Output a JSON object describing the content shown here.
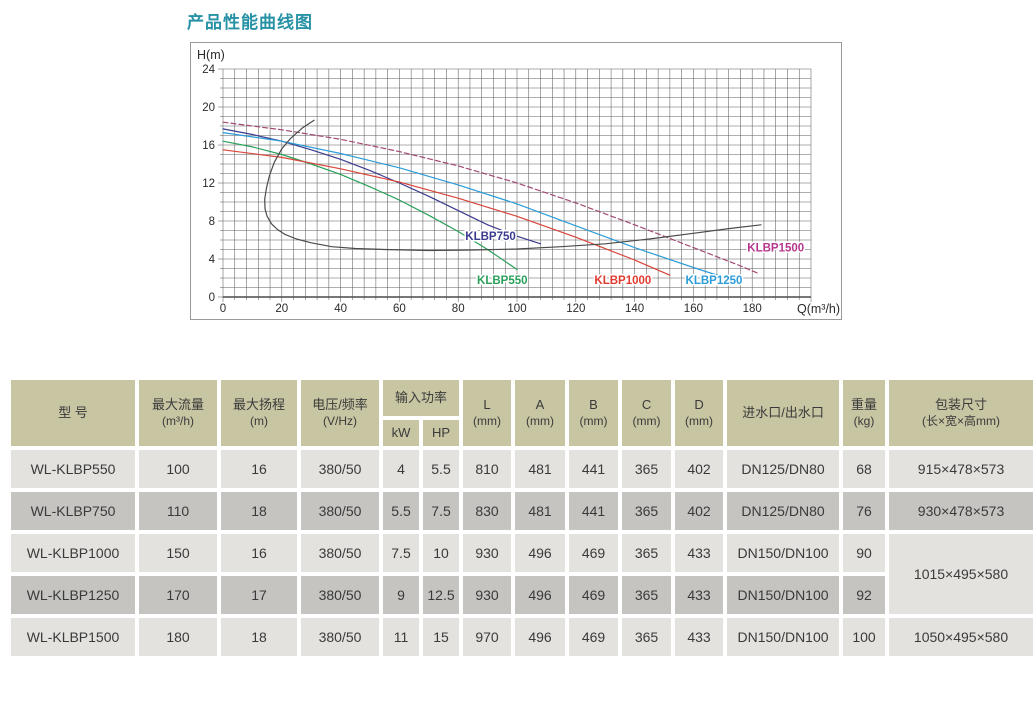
{
  "page": {
    "title": "产品性能曲线图",
    "title_color": "#2791a5"
  },
  "chart_data": {
    "type": "line",
    "title": "产品性能曲线图",
    "xlabel": "Q(m³/h)",
    "ylabel": "H(m)",
    "xlim": [
      0,
      200
    ],
    "ylim": [
      0,
      24
    ],
    "x_ticks": [
      0,
      20,
      40,
      60,
      80,
      100,
      120,
      140,
      160,
      180
    ],
    "y_ticks": [
      0,
      4,
      8,
      12,
      16,
      20,
      24
    ],
    "minor_x_step": 4,
    "minor_y_step": 1,
    "grid": true,
    "grid_color": "#5f5f5f",
    "legend_position": "inline-labels",
    "series": [
      {
        "name": "KLBP550",
        "color": "#2aa05a",
        "label_color": "#2aa05a",
        "label_at": [
          95,
          1.8
        ],
        "points": [
          [
            0,
            16.4
          ],
          [
            10,
            15.8
          ],
          [
            20,
            15.0
          ],
          [
            30,
            14.0
          ],
          [
            40,
            12.9
          ],
          [
            50,
            11.6
          ],
          [
            60,
            10.2
          ],
          [
            70,
            8.6
          ],
          [
            80,
            6.9
          ],
          [
            90,
            5.0
          ],
          [
            100,
            2.9
          ]
        ]
      },
      {
        "name": "KLBP750",
        "color": "#3b3b8e",
        "label_color": "#3b3b8e",
        "label_at": [
          91,
          6.4
        ],
        "points": [
          [
            0,
            17.7
          ],
          [
            10,
            17.1
          ],
          [
            20,
            16.4
          ],
          [
            30,
            15.5
          ],
          [
            40,
            14.5
          ],
          [
            50,
            13.3
          ],
          [
            60,
            12.0
          ],
          [
            70,
            10.6
          ],
          [
            80,
            9.1
          ],
          [
            90,
            7.6
          ],
          [
            100,
            6.4
          ],
          [
            108,
            5.6
          ]
        ]
      },
      {
        "name": "KLBP1000",
        "color": "#d9453a",
        "label_color": "#e03b30",
        "label_at": [
          136,
          1.8
        ],
        "points": [
          [
            0,
            15.5
          ],
          [
            20,
            14.7
          ],
          [
            40,
            13.5
          ],
          [
            60,
            12.1
          ],
          [
            80,
            10.4
          ],
          [
            100,
            8.5
          ],
          [
            120,
            6.3
          ],
          [
            140,
            3.9
          ],
          [
            152,
            2.3
          ]
        ]
      },
      {
        "name": "KLBP1250",
        "color": "#2b9cd8",
        "label_color": "#2b9cd8",
        "label_at": [
          167,
          1.8
        ],
        "points": [
          [
            0,
            17.3
          ],
          [
            20,
            16.4
          ],
          [
            40,
            15.1
          ],
          [
            60,
            13.6
          ],
          [
            80,
            11.8
          ],
          [
            100,
            9.8
          ],
          [
            120,
            7.5
          ],
          [
            140,
            5.2
          ],
          [
            160,
            3.1
          ],
          [
            170,
            2.1
          ]
        ]
      },
      {
        "name": "KLBP1500",
        "color": "#a34a74",
        "label_color": "#b5368d",
        "label_at": [
          188,
          5.2
        ],
        "dash": "5,3",
        "points": [
          [
            0,
            18.4
          ],
          [
            20,
            17.6
          ],
          [
            40,
            16.6
          ],
          [
            60,
            15.3
          ],
          [
            80,
            13.8
          ],
          [
            100,
            12.0
          ],
          [
            120,
            9.9
          ],
          [
            140,
            7.6
          ],
          [
            160,
            5.2
          ],
          [
            175,
            3.4
          ],
          [
            182,
            2.5
          ]
        ]
      },
      {
        "name": "",
        "color": "#4b4b4b",
        "label_at": null,
        "points": [
          [
            31,
            18.6
          ],
          [
            27,
            17.8
          ],
          [
            23,
            16.7
          ],
          [
            20,
            15.6
          ],
          [
            17.5,
            14.2
          ],
          [
            15.8,
            12.8
          ],
          [
            14.8,
            11.5
          ],
          [
            14.2,
            10.3
          ],
          [
            14.3,
            9.3
          ],
          [
            15,
            8.5
          ],
          [
            16.5,
            7.7
          ],
          [
            18.5,
            7.1
          ],
          [
            21,
            6.6
          ],
          [
            25,
            6.1
          ],
          [
            30,
            5.7
          ],
          [
            37,
            5.3
          ],
          [
            45,
            5.1
          ],
          [
            55,
            5.0
          ],
          [
            70,
            4.9
          ],
          [
            85,
            4.95
          ],
          [
            100,
            5.05
          ],
          [
            115,
            5.3
          ],
          [
            130,
            5.6
          ],
          [
            145,
            6.1
          ],
          [
            160,
            6.7
          ],
          [
            172,
            7.2
          ],
          [
            183,
            7.6
          ]
        ]
      }
    ]
  },
  "table": {
    "columns": [
      {
        "id": "model",
        "label": "型 号",
        "sub": ""
      },
      {
        "id": "flow",
        "label": "最大流量",
        "sub": "(m³/h)"
      },
      {
        "id": "head",
        "label": "最大扬程",
        "sub": "(m)"
      },
      {
        "id": "volt",
        "label": "电压/频率",
        "sub": "(V/Hz)"
      },
      {
        "id": "power",
        "label": "输入功率",
        "children": [
          "kW",
          "HP"
        ]
      },
      {
        "id": "L",
        "label": "L",
        "sub": "(mm)"
      },
      {
        "id": "A",
        "label": "A",
        "sub": "(mm)"
      },
      {
        "id": "B",
        "label": "B",
        "sub": "(mm)"
      },
      {
        "id": "C",
        "label": "C",
        "sub": "(mm)"
      },
      {
        "id": "D",
        "label": "D",
        "sub": "(mm)"
      },
      {
        "id": "port",
        "label": "进水口/出水口",
        "sub": ""
      },
      {
        "id": "weight",
        "label": "重量",
        "sub": "(kg)"
      },
      {
        "id": "pack",
        "label": "包装尺寸",
        "sub": "(长×宽×高mm)"
      }
    ],
    "rows": [
      [
        "WL-KLBP550",
        "100",
        "16",
        "380/50",
        "4",
        "5.5",
        "810",
        "481",
        "441",
        "365",
        "402",
        "DN125/DN80",
        "68",
        "915×478×573"
      ],
      [
        "WL-KLBP750",
        "110",
        "18",
        "380/50",
        "5.5",
        "7.5",
        "830",
        "481",
        "441",
        "365",
        "402",
        "DN125/DN80",
        "76",
        "930×478×573"
      ],
      [
        "WL-KLBP1000",
        "150",
        "16",
        "380/50",
        "7.5",
        "10",
        "930",
        "496",
        "469",
        "365",
        "433",
        "DN150/DN100",
        "90",
        "1015×495×580"
      ],
      [
        "WL-KLBP1250",
        "170",
        "17",
        "380/50",
        "9",
        "12.5",
        "930",
        "496",
        "469",
        "365",
        "433",
        "DN150/DN100",
        "92",
        null
      ],
      [
        "WL-KLBP1500",
        "180",
        "18",
        "380/50",
        "11",
        "15",
        "970",
        "496",
        "469",
        "365",
        "433",
        "DN150/DN100",
        "100",
        "1050×495×580"
      ]
    ],
    "pack_rowspan": {
      "row": 2,
      "span": 2
    }
  }
}
